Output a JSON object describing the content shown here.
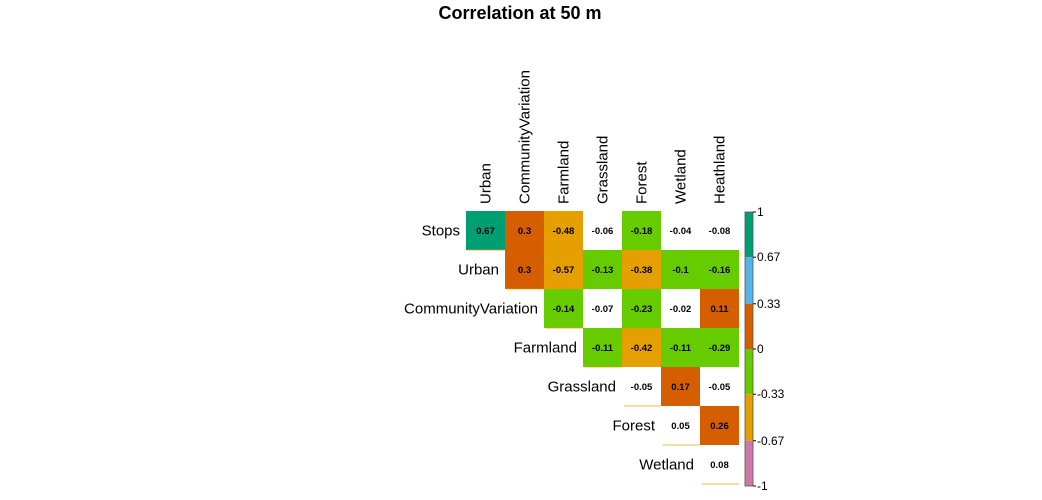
{
  "chart_data": {
    "type": "heatmap",
    "title": "Correlation at 50 m",
    "rows": [
      "Stops",
      "Urban",
      "CommunityVariation",
      "Farmland",
      "Grassland",
      "Forest",
      "Wetland"
    ],
    "columns": [
      "Urban",
      "CommunityVariation",
      "Farmland",
      "Grassland",
      "Forest",
      "Wetland",
      "Heathland"
    ],
    "matrix_layout": "upper-triangular",
    "values": [
      [
        0.67,
        0.3,
        -0.48,
        -0.06,
        -0.18,
        -0.04,
        -0.08
      ],
      [
        null,
        0.3,
        -0.57,
        -0.13,
        -0.38,
        -0.1,
        -0.16
      ],
      [
        null,
        null,
        -0.14,
        -0.07,
        -0.23,
        -0.02,
        0.11
      ],
      [
        null,
        null,
        null,
        -0.11,
        -0.42,
        -0.11,
        -0.29
      ],
      [
        null,
        null,
        null,
        null,
        -0.05,
        0.17,
        -0.05
      ],
      [
        null,
        null,
        null,
        null,
        null,
        0.05,
        0.26
      ],
      [
        null,
        null,
        null,
        null,
        null,
        null,
        0.08
      ]
    ],
    "value_labels": [
      [
        "0.67",
        "0.3",
        "-0.48",
        "-0.06",
        "-0.18",
        "-0.04",
        "-0.08"
      ],
      [
        "",
        "0.3",
        "-0.57",
        "-0.13",
        "-0.38",
        "-0.1",
        "-0.16"
      ],
      [
        "",
        "",
        "-0.14",
        "-0.07",
        "-0.23",
        "-0.02",
        "0.11"
      ],
      [
        "",
        "",
        "",
        "-0.11",
        "-0.42",
        "-0.11",
        "-0.29"
      ],
      [
        "",
        "",
        "",
        "",
        "-0.05",
        "0.17",
        "-0.05"
      ],
      [
        "",
        "",
        "",
        "",
        "",
        "0.05",
        "0.26"
      ],
      [
        "",
        "",
        "",
        "",
        "",
        "",
        "0.08"
      ]
    ],
    "colorbar": {
      "range": [
        -1,
        1
      ],
      "ticks": [
        "1",
        "0.67",
        "0.33",
        "0",
        "-0.33",
        "-0.67",
        "-1"
      ],
      "tick_values": [
        1,
        0.67,
        0.33,
        0,
        -0.33,
        -0.67,
        -1
      ],
      "bins": [
        {
          "from": 0.67,
          "to": 1,
          "color": "#009E73"
        },
        {
          "from": 0.33,
          "to": 0.67,
          "color": "#56B4E9"
        },
        {
          "from": 0,
          "to": 0.33,
          "color": "#D55E00"
        },
        {
          "from": -0.33,
          "to": 0,
          "color": "#66CC00"
        },
        {
          "from": -0.67,
          "to": -0.33,
          "color": "#E69F00"
        },
        {
          "from": -1,
          "to": -0.67,
          "color": "#CC79A7"
        }
      ]
    },
    "small_value_color": "#FFFFFF",
    "small_value_threshold": 0.1
  }
}
